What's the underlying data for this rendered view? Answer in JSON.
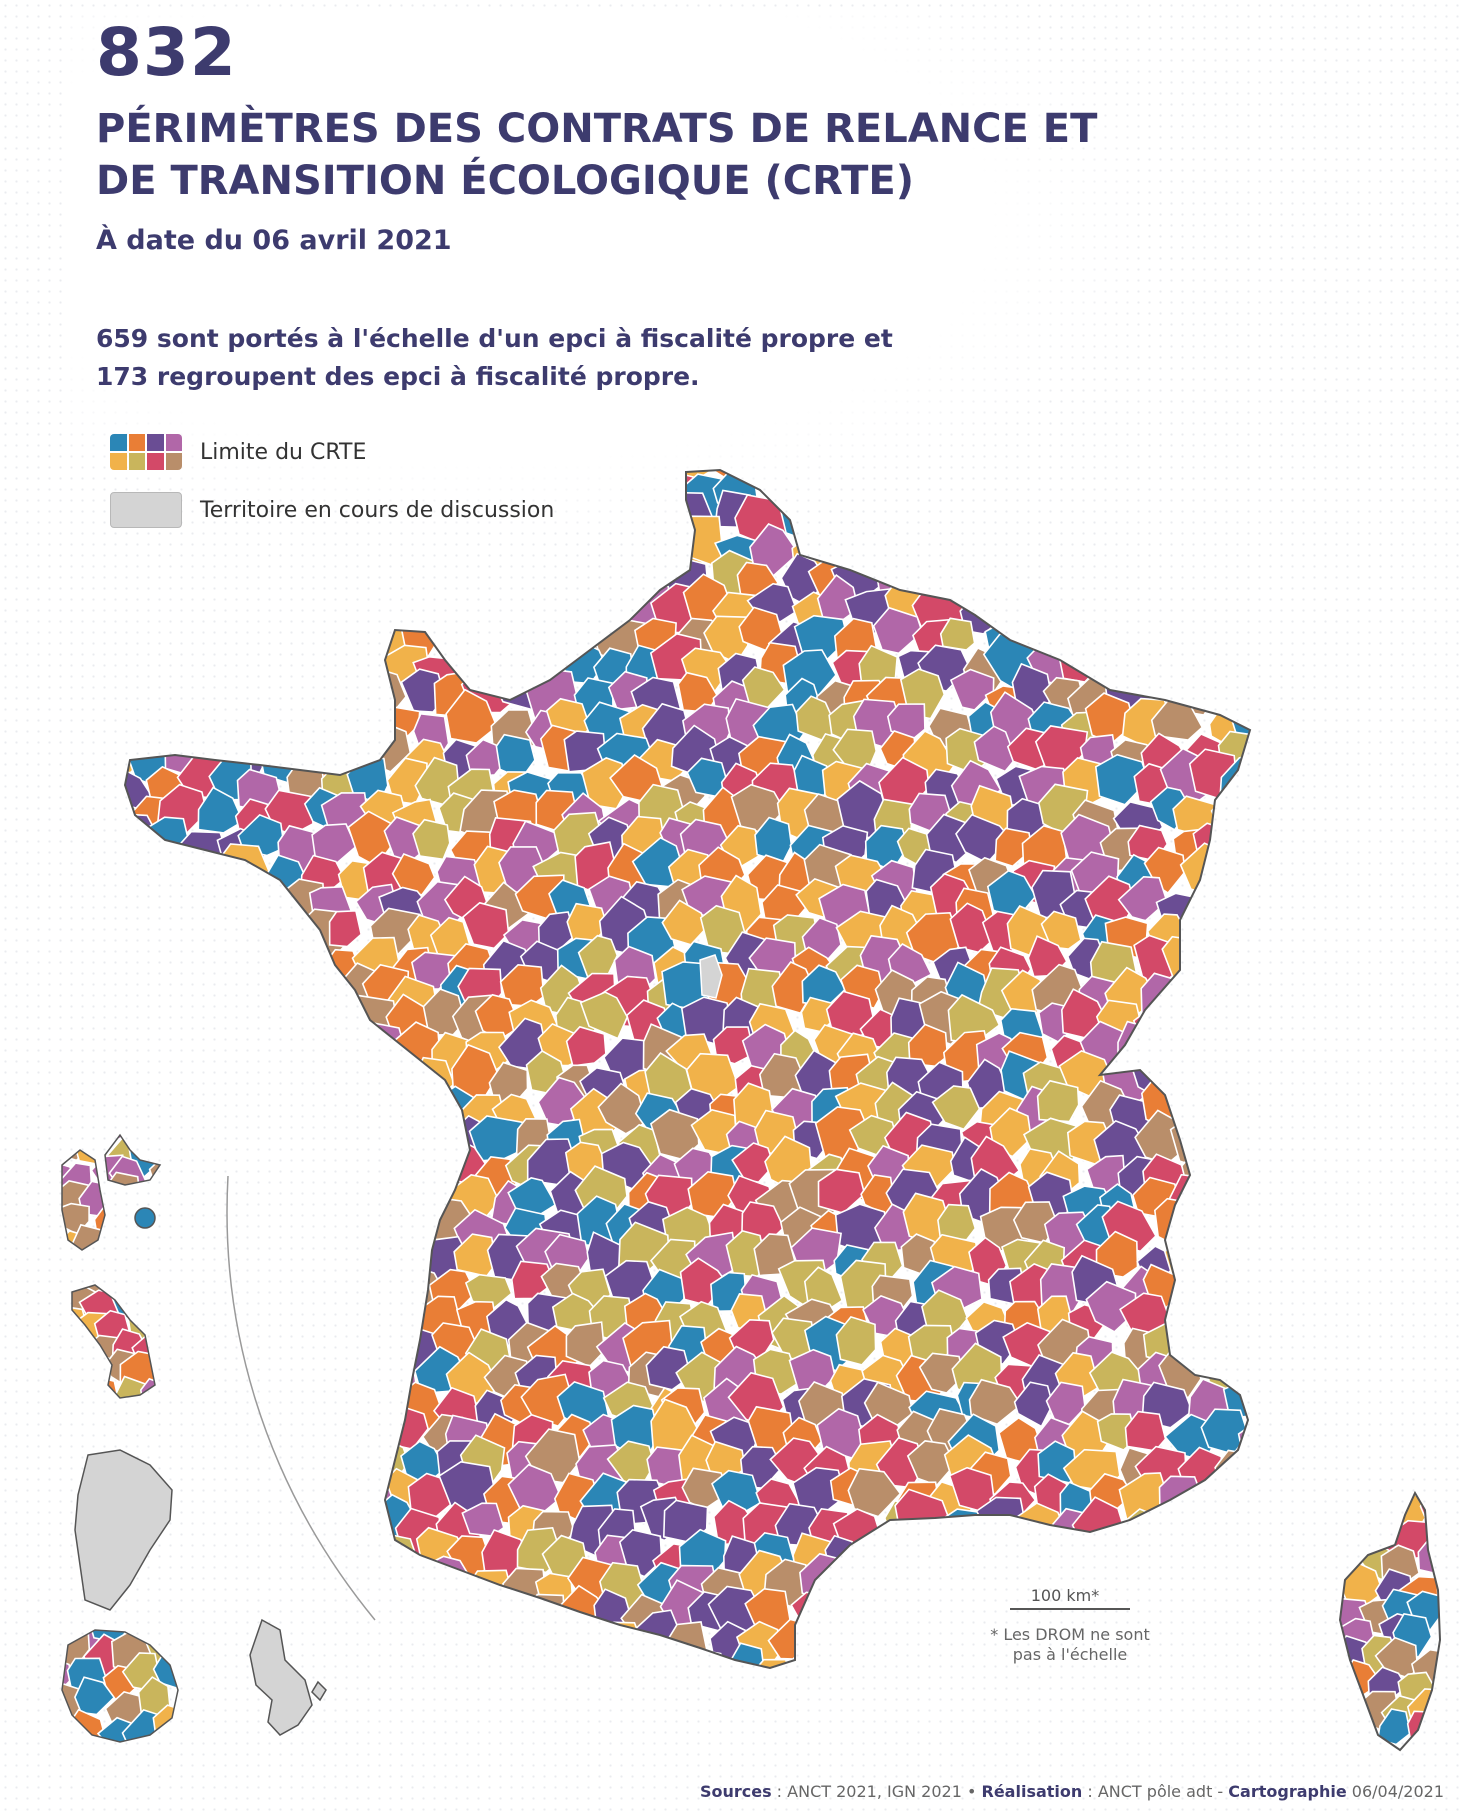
{
  "header": {
    "count": "832",
    "title_line1": "PÉRIMÈTRES DES CONTRATS DE RELANCE ET",
    "title_line2": "DE TRANSITION ÉCOLOGIQUE (CRTE)",
    "date": "À date du 06 avril 2021",
    "subtitle_line1": "659 sont portés à l'échelle d'un epci à fiscalité propre et",
    "subtitle_line2": "173 regroupent des epci à fiscalité propre."
  },
  "legend": {
    "crte_label": "Limite du CRTE",
    "discussion_label": "Territoire en cours de discussion",
    "crte_colors": [
      "#2b86b6",
      "#e97e36",
      "#6a4d94",
      "#b167a8",
      "#f1b24a",
      "#c9b55c",
      "#d34968",
      "#b98e6a"
    ],
    "discussion_color": "#d4d4d4"
  },
  "map": {
    "palette": [
      "#2b86b6",
      "#e97e36",
      "#6a4d94",
      "#b167a8",
      "#f1b24a",
      "#c9b55c",
      "#d34968",
      "#b98e6a"
    ],
    "territories": [
      "metropole",
      "corse",
      "guadeloupe",
      "martinique",
      "guyane",
      "reunion",
      "mayotte"
    ]
  },
  "scale": {
    "bar_label": "100 km*",
    "note_line1": "* Les DROM ne sont",
    "note_line2": "pas à l'échelle"
  },
  "footer": {
    "sources_label": "Sources",
    "sources_value": " : ANCT 2021, IGN 2021 • ",
    "realisation_label": "Réalisation",
    "realisation_value": " : ANCT pôle adt - ",
    "cartographie_label": "Cartographie",
    "cartographie_date": " 06/04/2021"
  }
}
